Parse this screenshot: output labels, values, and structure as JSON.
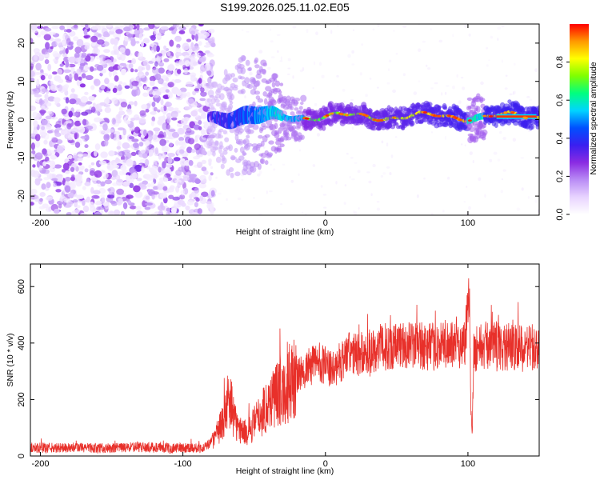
{
  "title": "S199.2026.025.11.02.E05",
  "colors": {
    "snr_line": "#e8302a",
    "background": "#ffffff",
    "axis": "#000000",
    "colormap": [
      "#ffffff",
      "#e8d4ff",
      "#b98cf5",
      "#8a2be2",
      "#3a1ff0",
      "#0050ff",
      "#00d5ff",
      "#00ff7f",
      "#7fff00",
      "#ffff00",
      "#ff9900",
      "#ff0000"
    ]
  },
  "chart_data": [
    {
      "type": "heatmap",
      "name": "spectrogram",
      "xlabel": "Height of straight line (km)",
      "ylabel": "Frequency (Hz)",
      "xlim": [
        -207,
        150
      ],
      "ylim": [
        -25,
        25
      ],
      "xticks": [
        -200,
        -100,
        0,
        100
      ],
      "yticks": [
        -20,
        -10,
        0,
        10,
        20
      ],
      "xtick_labels": [
        "-200",
        "-100",
        "0",
        "100"
      ],
      "ytick_labels": [
        "-20",
        "-10",
        "0",
        "10",
        "20"
      ],
      "noise_region_x": [
        -207,
        -82
      ],
      "onset_x": -82,
      "signal_center_hz": 0.8,
      "peak_band_x": [
        120,
        148
      ],
      "colorbar": {
        "label": "Normalized spectral amplitude",
        "range": [
          0,
          1
        ],
        "ticks": [
          0.0,
          0.2,
          0.4,
          0.6,
          0.8
        ],
        "tick_labels": [
          "0.0",
          "0.2",
          "0.4",
          "0.6",
          "0.8"
        ]
      }
    },
    {
      "type": "line",
      "name": "snr",
      "xlabel": "Height of straight line (km)",
      "ylabel": "SNR (10 * v/v)",
      "xlim": [
        -207,
        150
      ],
      "ylim": [
        0,
        680
      ],
      "xticks": [
        -200,
        -100,
        0,
        100
      ],
      "yticks": [
        0,
        200,
        400,
        600
      ],
      "xtick_labels": [
        "-200",
        "-100",
        "0",
        "100"
      ],
      "ytick_labels": [
        "0",
        "200",
        "400",
        "600"
      ],
      "series": [
        {
          "name": "SNR",
          "x": [
            -207,
            -190,
            -170,
            -150,
            -130,
            -110,
            -95,
            -85,
            -78,
            -72,
            -68,
            -62,
            -55,
            -45,
            -35,
            -25,
            -15,
            -5,
            5,
            15,
            25,
            35,
            45,
            60,
            75,
            90,
            98,
            100,
            101,
            102,
            103,
            104,
            110,
            120,
            130,
            140,
            150
          ],
          "y": [
            30,
            28,
            30,
            27,
            32,
            28,
            30,
            28,
            60,
            120,
            210,
            100,
            80,
            150,
            220,
            260,
            300,
            340,
            300,
            360,
            360,
            380,
            390,
            395,
            385,
            395,
            400,
            560,
            620,
            200,
            60,
            380,
            390,
            395,
            385,
            380,
            385
          ]
        }
      ]
    }
  ]
}
